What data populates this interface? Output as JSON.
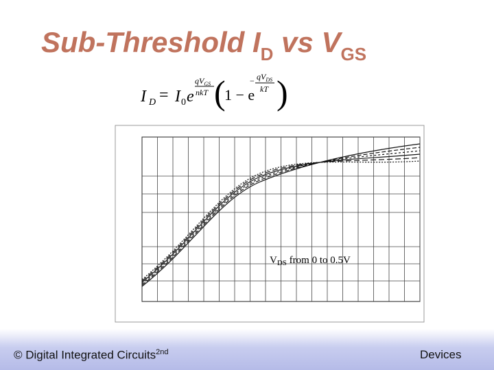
{
  "title": {
    "main": "Sub-Threshold I",
    "sub1": "D",
    "mid": " vs V",
    "sub2": "GS"
  },
  "formula": {
    "lhs": "I",
    "lhs_sub": "D",
    "eq": "=",
    "i0": "I",
    "i0_sub": "0",
    "e1": "e",
    "exp1_num": "qV",
    "exp1_num_sub": "GS",
    "exp1_den": "nkT",
    "open": "(",
    "one_minus": "1 − e",
    "exp2_num": "qV",
    "exp2_num_sub": "DS",
    "exp2_den": "kT",
    "exp2_sign": "−",
    "close": ")"
  },
  "annotation": {
    "v": "V",
    "sub": "DS",
    "rest": " from 0 to 0.5V"
  },
  "footer": {
    "left": "© Digital Integrated Circuits",
    "left_sup": "2nd",
    "right": "Devices"
  }
}
